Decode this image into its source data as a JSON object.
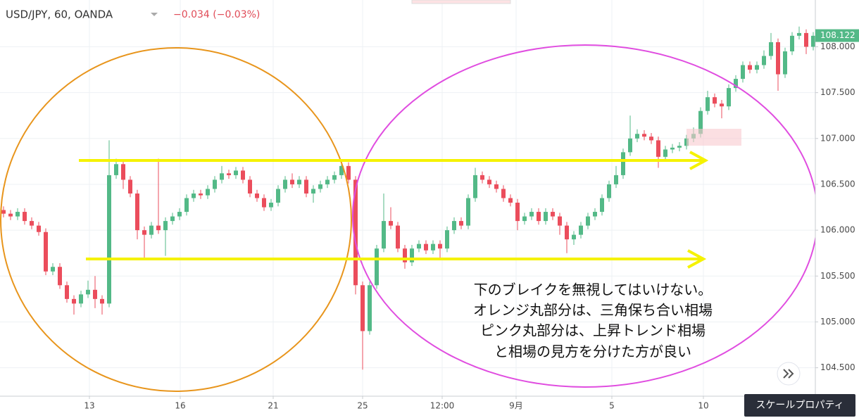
{
  "chart_data": {
    "type": "candlestick",
    "title": "USD/JPY, 60, OANDA",
    "change": "−0.034 (−0.03%)",
    "up_color": "#53b987",
    "down_color": "#eb4d5c",
    "open": [
      106.22,
      106.18,
      106.15,
      106.2,
      106.1,
      106.05,
      105.98,
      105.55,
      105.6,
      105.4,
      105.25,
      105.2,
      105.3,
      105.35,
      105.25,
      105.2,
      106.6,
      106.72,
      106.55,
      106.4,
      106.0,
      105.95,
      106.05,
      106.0,
      106.1,
      106.15,
      106.2,
      106.35,
      106.4,
      106.38,
      106.45,
      106.55,
      106.62,
      106.6,
      106.65,
      106.55,
      106.4,
      106.35,
      106.25,
      106.3,
      106.45,
      106.55,
      106.5,
      106.55,
      106.4,
      106.45,
      106.5,
      106.55,
      106.6,
      106.7,
      106.55,
      105.4,
      104.9,
      105.4,
      105.8,
      106.1,
      106.05,
      105.8,
      105.65,
      105.8,
      105.85,
      105.78,
      105.85,
      105.8,
      106.0,
      106.1,
      106.05,
      106.35,
      106.6,
      106.55,
      106.5,
      106.45,
      106.35,
      106.3,
      106.1,
      106.15,
      106.2,
      106.1,
      106.2,
      106.15,
      106.05,
      105.9,
      105.95,
      106.05,
      106.15,
      106.2,
      106.35,
      106.5,
      106.6,
      106.85,
      107.0,
      107.05,
      107.02,
      106.98,
      106.8,
      106.88,
      106.9,
      106.92,
      107.0,
      107.05,
      107.3,
      107.45,
      107.38,
      107.35,
      107.55,
      107.65,
      107.8,
      107.75,
      107.8,
      107.9,
      108.05,
      107.7,
      107.95,
      108.12,
      108.15,
      108.0
    ],
    "high": [
      106.26,
      106.22,
      106.24,
      106.24,
      106.14,
      106.09,
      106.02,
      105.64,
      105.64,
      105.44,
      105.29,
      105.34,
      105.45,
      105.5,
      105.29,
      106.98,
      106.78,
      106.76,
      106.59,
      106.44,
      106.04,
      106.09,
      106.78,
      106.14,
      106.19,
      106.24,
      106.39,
      106.44,
      106.44,
      106.49,
      106.59,
      106.7,
      106.66,
      106.69,
      106.69,
      106.59,
      106.44,
      106.39,
      106.34,
      106.49,
      106.59,
      106.62,
      106.59,
      106.59,
      106.49,
      106.54,
      106.59,
      106.64,
      106.76,
      106.74,
      106.59,
      105.44,
      105.44,
      105.84,
      106.4,
      106.25,
      106.09,
      105.84,
      105.84,
      105.89,
      105.89,
      105.89,
      105.89,
      106.04,
      106.14,
      106.14,
      106.39,
      106.68,
      106.64,
      106.59,
      106.54,
      106.49,
      106.39,
      106.34,
      106.19,
      106.24,
      106.24,
      106.24,
      106.24,
      106.19,
      106.09,
      105.99,
      106.09,
      106.19,
      106.24,
      106.39,
      106.54,
      106.7,
      106.89,
      107.25,
      107.1,
      107.09,
      107.06,
      107.02,
      106.92,
      106.94,
      106.96,
      107.04,
      107.12,
      107.34,
      107.52,
      107.49,
      107.42,
      107.59,
      107.69,
      107.84,
      107.84,
      107.84,
      107.96,
      108.15,
      108.09,
      107.99,
      108.16,
      108.22,
      108.19,
      108.16
    ],
    "low": [
      106.14,
      106.11,
      106.11,
      106.06,
      106.01,
      105.94,
      105.51,
      105.51,
      105.36,
      105.21,
      105.08,
      105.16,
      105.26,
      105.15,
      105.08,
      105.16,
      106.56,
      106.45,
      106.36,
      105.9,
      105.68,
      105.91,
      105.96,
      105.72,
      106.06,
      106.11,
      106.16,
      106.31,
      106.34,
      106.34,
      106.41,
      106.51,
      106.56,
      106.56,
      106.51,
      106.36,
      106.31,
      106.21,
      106.21,
      106.26,
      106.41,
      106.46,
      106.46,
      106.36,
      106.3,
      106.41,
      106.46,
      106.51,
      106.56,
      106.51,
      105.3,
      104.48,
      104.86,
      105.36,
      105.76,
      106.01,
      105.76,
      105.58,
      105.61,
      105.76,
      105.74,
      105.74,
      105.7,
      105.76,
      105.96,
      106.01,
      106.01,
      106.31,
      106.51,
      106.46,
      106.41,
      106.31,
      106.26,
      106.0,
      106.06,
      106.11,
      106.06,
      106.06,
      106.11,
      105.95,
      105.75,
      105.84,
      105.91,
      106.01,
      106.11,
      106.16,
      106.31,
      106.46,
      106.56,
      106.81,
      106.96,
      106.98,
      106.94,
      106.68,
      106.76,
      106.84,
      106.86,
      106.88,
      106.96,
      107.01,
      107.26,
      107.34,
      107.22,
      107.31,
      107.51,
      107.61,
      107.71,
      107.71,
      107.76,
      107.86,
      107.52,
      107.66,
      107.91,
      108.08,
      107.92,
      107.96
    ],
    "close": [
      106.18,
      106.15,
      106.2,
      106.1,
      106.05,
      105.98,
      105.55,
      105.6,
      105.4,
      105.25,
      105.2,
      105.3,
      105.35,
      105.25,
      105.2,
      106.6,
      106.72,
      106.55,
      106.4,
      106.0,
      105.95,
      106.05,
      106.0,
      106.1,
      106.15,
      106.2,
      106.35,
      106.4,
      106.38,
      106.45,
      106.55,
      106.62,
      106.6,
      106.65,
      106.55,
      106.4,
      106.35,
      106.25,
      106.3,
      106.45,
      106.55,
      106.5,
      106.55,
      106.4,
      106.45,
      106.5,
      106.55,
      106.6,
      106.7,
      106.55,
      105.4,
      104.9,
      105.4,
      105.8,
      106.1,
      106.05,
      105.8,
      105.65,
      105.8,
      105.85,
      105.78,
      105.85,
      105.8,
      106.0,
      106.1,
      106.05,
      106.35,
      106.6,
      106.55,
      106.5,
      106.45,
      106.35,
      106.3,
      106.1,
      106.15,
      106.2,
      106.1,
      106.2,
      106.15,
      106.05,
      105.9,
      105.95,
      106.05,
      106.15,
      106.2,
      106.35,
      106.5,
      106.6,
      106.85,
      107.0,
      107.05,
      107.02,
      106.98,
      106.8,
      106.88,
      106.9,
      106.92,
      107.0,
      107.05,
      107.3,
      107.45,
      107.38,
      107.35,
      107.55,
      107.65,
      107.8,
      107.75,
      107.8,
      107.9,
      108.05,
      107.7,
      107.95,
      108.12,
      108.15,
      108.0,
      108.12
    ],
    "xlim": [
      -0.5,
      115.3
    ],
    "xticks": [
      {
        "value": 12.2,
        "label": "13"
      },
      {
        "value": 25.1,
        "label": "16"
      },
      {
        "value": 38.3,
        "label": "21"
      },
      {
        "value": 51,
        "label": "25"
      },
      {
        "value": 62.3,
        "label": "12:00"
      },
      {
        "value": 72.8,
        "label": "9月"
      },
      {
        "value": 86.4,
        "label": "5"
      },
      {
        "value": 99.4,
        "label": "10"
      }
    ],
    "ylim": [
      104.19,
      108.51
    ],
    "yticks": [
      {
        "value": 104.5,
        "label": "104.500"
      },
      {
        "value": 105,
        "label": "105.000"
      },
      {
        "value": 105.5,
        "label": "105.500"
      },
      {
        "value": 106,
        "label": "106.000"
      },
      {
        "value": 106.5,
        "label": "106.500"
      },
      {
        "value": 107,
        "label": "107.000"
      },
      {
        "value": 107.5,
        "label": "107.500"
      },
      {
        "value": 108,
        "label": "108.000"
      }
    ],
    "grid": true,
    "last_price": {
      "value": 108.122,
      "label": "108.122"
    },
    "annotation": [
      "下のブレイクを無視してはいけない。",
      "オレンジ丸部分は、三角保ち合い相場",
      "ピンク丸部分は、上昇トレンド相場",
      "と相場の見方を分けた方が良い"
    ],
    "button": "スケールプロパティ"
  }
}
